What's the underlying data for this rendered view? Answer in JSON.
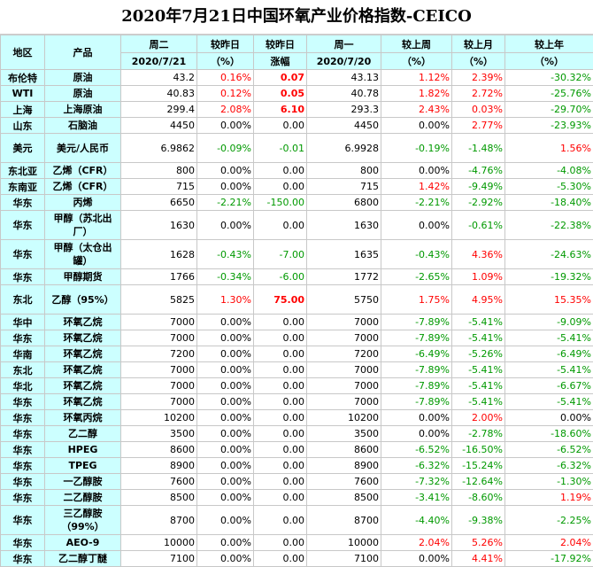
{
  "title": "2020年7月21日中国环氧产业价格指数-CEICO",
  "headers": {
    "region": "地区",
    "product": "产品",
    "tuesday": "周二",
    "tuesday_date": "2020/7/21",
    "vs_prev_pct": "较昨日",
    "pct_unit": "（%）",
    "vs_prev_amt": "较昨日",
    "amt_unit": "涨幅",
    "monday": "周一",
    "monday_date": "2020/7/20",
    "vs_last_week": "较上周",
    "vs_last_week_unit": "（%）",
    "vs_last_month": "较上月",
    "vs_last_month_unit": "（%）",
    "vs_last_year": "较上年",
    "vs_last_year_unit": "（%）"
  },
  "colors": {
    "header_bg": "#ccffff",
    "up": "#ff0000",
    "down": "#009900"
  },
  "rows": [
    {
      "region": "布伦特",
      "product": "原油",
      "tue": "43.2",
      "pct": "0.16%",
      "pct_c": "red",
      "amt": "0.07",
      "amt_c": "red",
      "amt_b": true,
      "mon": "43.13",
      "wk": "1.12%",
      "wk_c": "red",
      "mo": "2.39%",
      "mo_c": "red",
      "yr": "-30.32%",
      "yr_c": "green",
      "h": 17
    },
    {
      "region": "WTI",
      "product": "原油",
      "tue": "40.83",
      "pct": "0.12%",
      "pct_c": "red",
      "amt": "0.05",
      "amt_c": "red",
      "amt_b": true,
      "mon": "40.78",
      "wk": "1.82%",
      "wk_c": "red",
      "mo": "2.72%",
      "mo_c": "red",
      "yr": "-25.76%",
      "yr_c": "green",
      "h": 17
    },
    {
      "region": "上海",
      "product": "上海原油",
      "tue": "299.4",
      "pct": "2.08%",
      "pct_c": "red",
      "amt": "6.10",
      "amt_c": "red",
      "amt_b": true,
      "mon": "293.3",
      "wk": "2.43%",
      "wk_c": "red",
      "mo": "0.03%",
      "mo_c": "red",
      "yr": "-29.70%",
      "yr_c": "green",
      "h": 17
    },
    {
      "region": "山东",
      "product": "石脑油",
      "tue": "4450",
      "pct": "0.00%",
      "pct_c": "black",
      "amt": "0.00",
      "amt_c": "black",
      "amt_b": false,
      "mon": "4450",
      "wk": "0.00%",
      "wk_c": "black",
      "mo": "2.77%",
      "mo_c": "red",
      "yr": "-23.93%",
      "yr_c": "green",
      "h": 17
    },
    {
      "region": "美元",
      "product": "美元/人民币",
      "tue": "6.9862",
      "pct": "-0.09%",
      "pct_c": "green",
      "amt": "-0.01",
      "amt_c": "green",
      "amt_b": false,
      "mon": "6.9928",
      "wk": "-0.19%",
      "wk_c": "green",
      "mo": "-1.48%",
      "mo_c": "green",
      "yr": "1.56%",
      "yr_c": "red",
      "h": 33
    },
    {
      "region": "东北亚",
      "product": "乙烯（CFR）",
      "tue": "800",
      "pct": "0.00%",
      "pct_c": "black",
      "amt": "0.00",
      "amt_c": "black",
      "amt_b": false,
      "mon": "800",
      "wk": "0.00%",
      "wk_c": "black",
      "mo": "-4.76%",
      "mo_c": "green",
      "yr": "-4.08%",
      "yr_c": "green",
      "h": 17
    },
    {
      "region": "东南亚",
      "product": "乙烯（CFR）",
      "tue": "715",
      "pct": "0.00%",
      "pct_c": "black",
      "amt": "0.00",
      "amt_c": "black",
      "amt_b": false,
      "mon": "715",
      "wk": "1.42%",
      "wk_c": "red",
      "mo": "-9.49%",
      "mo_c": "green",
      "yr": "-5.30%",
      "yr_c": "green",
      "h": 17
    },
    {
      "region": "华东",
      "product": "丙烯",
      "tue": "6650",
      "pct": "-2.21%",
      "pct_c": "green",
      "amt": "-150.00",
      "amt_c": "green",
      "amt_b": false,
      "mon": "6800",
      "wk": "-2.21%",
      "wk_c": "green",
      "mo": "-2.92%",
      "mo_c": "green",
      "yr": "-18.40%",
      "yr_c": "green",
      "h": 17
    },
    {
      "region": "华东",
      "product": "甲醇（苏北出厂）",
      "tue": "1630",
      "pct": "0.00%",
      "pct_c": "black",
      "amt": "0.00",
      "amt_c": "black",
      "amt_b": false,
      "mon": "1630",
      "wk": "0.00%",
      "wk_c": "black",
      "mo": "-0.61%",
      "mo_c": "green",
      "yr": "-22.38%",
      "yr_c": "green",
      "h": 33
    },
    {
      "region": "华东",
      "product": "甲醇（太仓出罐）",
      "tue": "1628",
      "pct": "-0.43%",
      "pct_c": "green",
      "amt": "-7.00",
      "amt_c": "green",
      "amt_b": false,
      "mon": "1635",
      "wk": "-0.43%",
      "wk_c": "green",
      "mo": "4.36%",
      "mo_c": "red",
      "yr": "-24.63%",
      "yr_c": "green",
      "h": 33
    },
    {
      "region": "华东",
      "product": "甲醇期货",
      "tue": "1766",
      "pct": "-0.34%",
      "pct_c": "green",
      "amt": "-6.00",
      "amt_c": "green",
      "amt_b": false,
      "mon": "1772",
      "wk": "-2.65%",
      "wk_c": "green",
      "mo": "1.09%",
      "mo_c": "red",
      "yr": "-19.32%",
      "yr_c": "green",
      "h": 17
    },
    {
      "region": "东北",
      "product": "乙醇（95%）",
      "tue": "5825",
      "pct": "1.30%",
      "pct_c": "red",
      "amt": "75.00",
      "amt_c": "red",
      "amt_b": true,
      "mon": "5750",
      "wk": "1.75%",
      "wk_c": "red",
      "mo": "4.95%",
      "mo_c": "red",
      "yr": "15.35%",
      "yr_c": "red",
      "h": 33
    },
    {
      "region": "华中",
      "product": "环氧乙烷",
      "tue": "7000",
      "pct": "0.00%",
      "pct_c": "black",
      "amt": "0.00",
      "amt_c": "black",
      "amt_b": false,
      "mon": "7000",
      "wk": "-7.89%",
      "wk_c": "green",
      "mo": "-5.41%",
      "mo_c": "green",
      "yr": "-9.09%",
      "yr_c": "green",
      "h": 17
    },
    {
      "region": "华东",
      "product": "环氧乙烷",
      "tue": "7000",
      "pct": "0.00%",
      "pct_c": "black",
      "amt": "0.00",
      "amt_c": "black",
      "amt_b": false,
      "mon": "7000",
      "wk": "-7.89%",
      "wk_c": "green",
      "mo": "-5.41%",
      "mo_c": "green",
      "yr": "-5.41%",
      "yr_c": "green",
      "h": 17
    },
    {
      "region": "华南",
      "product": "环氧乙烷",
      "tue": "7200",
      "pct": "0.00%",
      "pct_c": "black",
      "amt": "0.00",
      "amt_c": "black",
      "amt_b": false,
      "mon": "7200",
      "wk": "-6.49%",
      "wk_c": "green",
      "mo": "-5.26%",
      "mo_c": "green",
      "yr": "-6.49%",
      "yr_c": "green",
      "h": 17
    },
    {
      "region": "东北",
      "product": "环氧乙烷",
      "tue": "7000",
      "pct": "0.00%",
      "pct_c": "black",
      "amt": "0.00",
      "amt_c": "black",
      "amt_b": false,
      "mon": "7000",
      "wk": "-7.89%",
      "wk_c": "green",
      "mo": "-5.41%",
      "mo_c": "green",
      "yr": "-5.41%",
      "yr_c": "green",
      "h": 17
    },
    {
      "region": "华北",
      "product": "环氧乙烷",
      "tue": "7000",
      "pct": "0.00%",
      "pct_c": "black",
      "amt": "0.00",
      "amt_c": "black",
      "amt_b": false,
      "mon": "7000",
      "wk": "-7.89%",
      "wk_c": "green",
      "mo": "-5.41%",
      "mo_c": "green",
      "yr": "-6.67%",
      "yr_c": "green",
      "h": 17
    },
    {
      "region": "华东",
      "product": "环氧乙烷",
      "tue": "7000",
      "pct": "0.00%",
      "pct_c": "black",
      "amt": "0.00",
      "amt_c": "black",
      "amt_b": false,
      "mon": "7000",
      "wk": "-7.89%",
      "wk_c": "green",
      "mo": "-5.41%",
      "mo_c": "green",
      "yr": "-5.41%",
      "yr_c": "green",
      "h": 17
    },
    {
      "region": "华东",
      "product": "环氧丙烷",
      "tue": "10200",
      "pct": "0.00%",
      "pct_c": "black",
      "amt": "0.00",
      "amt_c": "black",
      "amt_b": false,
      "mon": "10200",
      "wk": "0.00%",
      "wk_c": "black",
      "mo": "2.00%",
      "mo_c": "red",
      "yr": "0.00%",
      "yr_c": "black",
      "h": 17
    },
    {
      "region": "华东",
      "product": "乙二醇",
      "tue": "3500",
      "pct": "0.00%",
      "pct_c": "black",
      "amt": "0.00",
      "amt_c": "black",
      "amt_b": false,
      "mon": "3500",
      "wk": "0.00%",
      "wk_c": "black",
      "mo": "-2.78%",
      "mo_c": "green",
      "yr": "-18.60%",
      "yr_c": "green",
      "h": 17
    },
    {
      "region": "华东",
      "product": "HPEG",
      "tue": "8600",
      "pct": "0.00%",
      "pct_c": "black",
      "amt": "0.00",
      "amt_c": "black",
      "amt_b": false,
      "mon": "8600",
      "wk": "-6.52%",
      "wk_c": "green",
      "mo": "-16.50%",
      "mo_c": "green",
      "yr": "-6.52%",
      "yr_c": "green",
      "h": 17
    },
    {
      "region": "华东",
      "product": "TPEG",
      "tue": "8900",
      "pct": "0.00%",
      "pct_c": "black",
      "amt": "0.00",
      "amt_c": "black",
      "amt_b": false,
      "mon": "8900",
      "wk": "-6.32%",
      "wk_c": "green",
      "mo": "-15.24%",
      "mo_c": "green",
      "yr": "-6.32%",
      "yr_c": "green",
      "h": 17
    },
    {
      "region": "华东",
      "product": "一乙醇胺",
      "tue": "7600",
      "pct": "0.00%",
      "pct_c": "black",
      "amt": "0.00",
      "amt_c": "black",
      "amt_b": false,
      "mon": "7600",
      "wk": "-7.32%",
      "wk_c": "green",
      "mo": "-12.64%",
      "mo_c": "green",
      "yr": "-1.30%",
      "yr_c": "green",
      "h": 17
    },
    {
      "region": "华东",
      "product": "二乙醇胺",
      "tue": "8500",
      "pct": "0.00%",
      "pct_c": "black",
      "amt": "0.00",
      "amt_c": "black",
      "amt_b": false,
      "mon": "8500",
      "wk": "-3.41%",
      "wk_c": "green",
      "mo": "-8.60%",
      "mo_c": "green",
      "yr": "1.19%",
      "yr_c": "red",
      "h": 17
    },
    {
      "region": "华东",
      "product": "三乙醇胺（99%）",
      "tue": "8700",
      "pct": "0.00%",
      "pct_c": "black",
      "amt": "0.00",
      "amt_c": "black",
      "amt_b": false,
      "mon": "8700",
      "wk": "-4.40%",
      "wk_c": "green",
      "mo": "-9.38%",
      "mo_c": "green",
      "yr": "-2.25%",
      "yr_c": "green",
      "h": 33
    },
    {
      "region": "华东",
      "product": "AEO-9",
      "tue": "10000",
      "pct": "0.00%",
      "pct_c": "black",
      "amt": "0.00",
      "amt_c": "black",
      "amt_b": false,
      "mon": "10000",
      "wk": "2.04%",
      "wk_c": "red",
      "mo": "5.26%",
      "mo_c": "red",
      "yr": "2.04%",
      "yr_c": "red",
      "h": 17
    },
    {
      "region": "华东",
      "product": "乙二醇丁醚",
      "tue": "7100",
      "pct": "0.00%",
      "pct_c": "black",
      "amt": "0.00",
      "amt_c": "black",
      "amt_b": false,
      "mon": "7100",
      "wk": "0.00%",
      "wk_c": "black",
      "mo": "4.41%",
      "mo_c": "red",
      "yr": "-17.92%",
      "yr_c": "green",
      "h": 17
    }
  ]
}
